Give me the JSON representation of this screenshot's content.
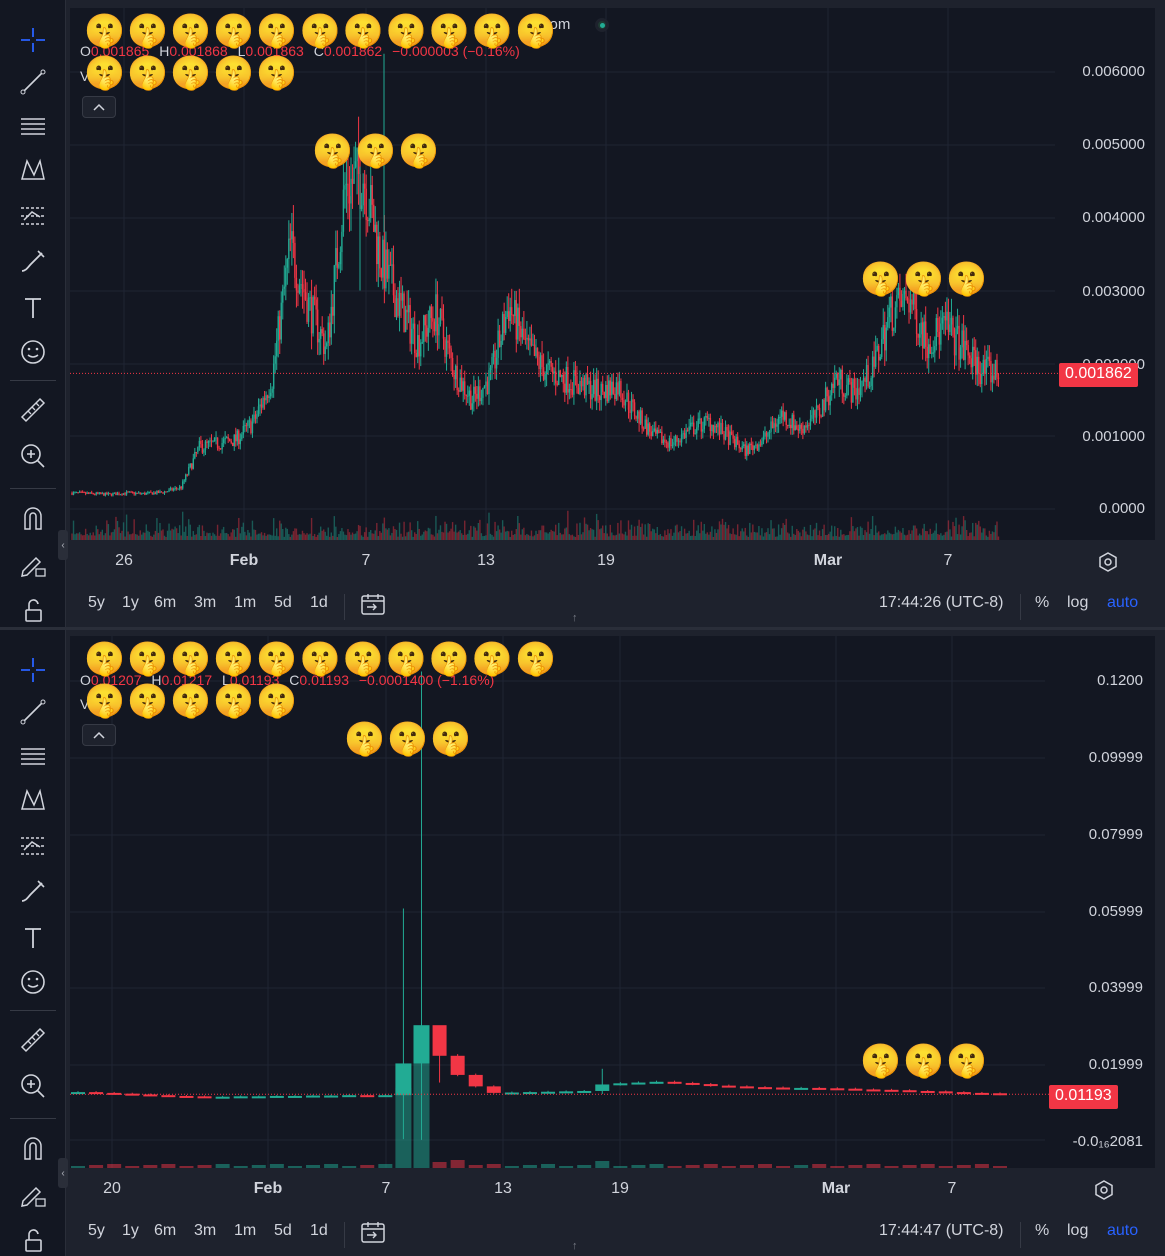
{
  "colors": {
    "up": "#22ab94",
    "down": "#f23645",
    "background": "#131722",
    "toolbar": "#131722",
    "text": "#d1d4dc",
    "accent": "#2962ff",
    "grid": "#1f2433"
  },
  "toolbar_icons": [
    "crosshair-icon",
    "trend-line-icon",
    "fib-retracement-icon",
    "pattern-icon",
    "forecast-icon",
    "brush-icon",
    "text-icon",
    "emoji-icon",
    "ruler-icon",
    "zoom-in-icon",
    "magnet-icon",
    "lock-drawing-icon",
    "unlock-icon"
  ],
  "chart1": {
    "title": "com",
    "ohlc": {
      "o_label": "O",
      "h_label": "H",
      "l_label": "L",
      "c_label": "C",
      "o_value": "0.001865",
      "h_value": "0.001868",
      "l_value": "0.001863",
      "c_value": "0.001862",
      "change": "−0.000003 (−0.16%)"
    },
    "volume_label": "V",
    "price_axis": [
      "0.006000",
      "0.005000",
      "0.004000",
      "0.003000",
      "0.002000",
      "0.001000",
      "0.0000"
    ],
    "current_price": "0.001862",
    "time_axis": [
      "26",
      "Feb",
      "7",
      "13",
      "19",
      "Mar",
      "7"
    ],
    "clock": "17:44:26 (UTC-8)",
    "chart_data": {
      "type": "candlestick",
      "x_start": "Jan 22",
      "x_end": "Mar 10",
      "ylim": [
        0,
        0.0063
      ],
      "approx_close_series": [
        0.00022,
        0.00021,
        0.0002,
        0.00022,
        0.00021,
        0.00023,
        0.0003,
        0.00085,
        0.0009,
        0.00095,
        0.0012,
        0.0018,
        0.0036,
        0.0028,
        0.0022,
        0.0044,
        0.0046,
        0.0034,
        0.0028,
        0.0023,
        0.0027,
        0.0019,
        0.0015,
        0.0018,
        0.0028,
        0.0022,
        0.0019,
        0.0018,
        0.0017,
        0.0016,
        0.0017,
        0.0013,
        0.001,
        0.0009,
        0.0011,
        0.0012,
        0.001,
        0.0008,
        0.00095,
        0.0013,
        0.0011,
        0.0013,
        0.0018,
        0.0016,
        0.0019,
        0.0027,
        0.0029,
        0.0023,
        0.0025,
        0.0022,
        0.0019,
        0.00186
      ]
    }
  },
  "chart2": {
    "title": "c",
    "ohlc": {
      "o_label": "O",
      "h_label": "H",
      "l_label": "L",
      "c_label": "C",
      "o_value": "0.01207",
      "h_value": "0.01217",
      "l_value": "0.01193",
      "c_value": "0.01193",
      "change": "−0.0001400 (−1.16%)"
    },
    "volume_label": "V",
    "price_axis": [
      "0.1200",
      "0.09999",
      "0.07999",
      "0.05999",
      "0.03999",
      "0.01999",
      "-0.0₁₆2081"
    ],
    "current_price": "0.01193",
    "time_axis": [
      "20",
      "Feb",
      "7",
      "13",
      "19",
      "Mar",
      "7"
    ],
    "clock": "17:44:47 (UTC-8)",
    "chart_data": {
      "type": "candlestick",
      "x_start": "Jan 16",
      "x_end": "Mar 10",
      "ylim": [
        -0.005,
        0.125
      ],
      "approx_close_series": [
        0.0125,
        0.0123,
        0.0121,
        0.0119,
        0.0117,
        0.0115,
        0.0114,
        0.0113,
        0.0113,
        0.0114,
        0.0114,
        0.0115,
        0.0115,
        0.0116,
        0.0116,
        0.0117,
        0.0116,
        0.0117,
        0.02,
        0.03,
        0.022,
        0.017,
        0.014,
        0.0123,
        0.0124,
        0.0125,
        0.0126,
        0.0127,
        0.0128,
        0.0145,
        0.0148,
        0.015,
        0.0152,
        0.0149,
        0.0146,
        0.0142,
        0.014,
        0.0138,
        0.0137,
        0.0136,
        0.0136,
        0.0135,
        0.0134,
        0.0132,
        0.0131,
        0.013,
        0.0128,
        0.0127,
        0.0125,
        0.0123,
        0.0122,
        0.01193
      ]
    }
  },
  "range_buttons": [
    "5y",
    "1y",
    "6m",
    "3m",
    "1m",
    "5d",
    "1d"
  ],
  "scale_buttons": {
    "percent": "%",
    "log": "log",
    "auto": "auto"
  },
  "emoji": "🤫"
}
